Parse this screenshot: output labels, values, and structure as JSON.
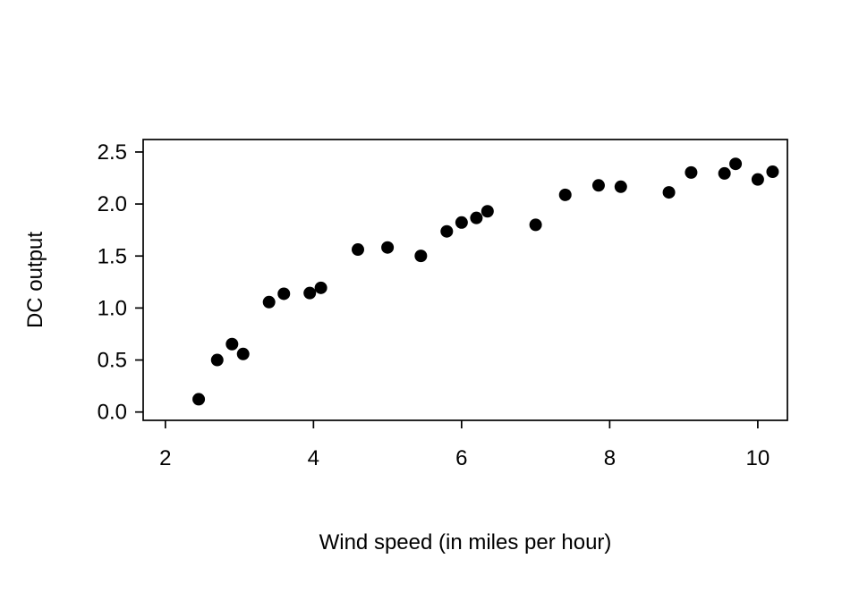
{
  "chart_data": {
    "type": "scatter",
    "title": "",
    "xlabel": "Wind speed (in miles per hour)",
    "ylabel": "DC output",
    "xlim": [
      1.7,
      10.4
    ],
    "ylim": [
      -0.08,
      2.62
    ],
    "xticks": [
      2,
      4,
      6,
      8,
      10
    ],
    "xtick_labels": [
      "2",
      "4",
      "6",
      "8",
      "10"
    ],
    "yticks": [
      0.0,
      0.5,
      1.0,
      1.5,
      2.0,
      2.5
    ],
    "ytick_labels": [
      "0.0",
      "0.5",
      "1.0",
      "1.5",
      "2.0",
      "2.5"
    ],
    "grid": false,
    "legend": "none",
    "point_style": "filled-circle",
    "point_color": "#000000",
    "axis_color": "#000000",
    "background_color": "#ffffff",
    "points": [
      [
        2.45,
        0.123
      ],
      [
        2.7,
        0.5
      ],
      [
        2.9,
        0.653
      ],
      [
        3.05,
        0.558
      ],
      [
        3.4,
        1.057
      ],
      [
        3.6,
        1.137
      ],
      [
        3.95,
        1.144
      ],
      [
        4.1,
        1.194
      ],
      [
        4.6,
        1.562
      ],
      [
        5.0,
        1.582
      ],
      [
        5.45,
        1.501
      ],
      [
        5.8,
        1.737
      ],
      [
        6.0,
        1.822
      ],
      [
        6.2,
        1.866
      ],
      [
        6.35,
        1.93
      ],
      [
        7.0,
        1.8
      ],
      [
        7.4,
        2.088
      ],
      [
        7.85,
        2.179
      ],
      [
        8.15,
        2.166
      ],
      [
        8.8,
        2.112
      ],
      [
        9.1,
        2.303
      ],
      [
        9.55,
        2.294
      ],
      [
        9.7,
        2.386
      ],
      [
        10.0,
        2.236
      ],
      [
        10.2,
        2.31
      ]
    ]
  }
}
